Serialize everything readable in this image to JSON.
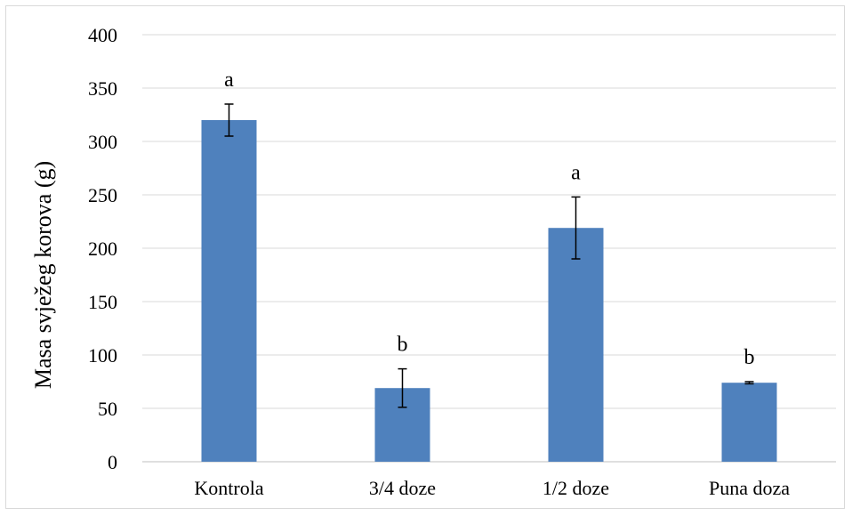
{
  "chart_data": {
    "type": "bar",
    "title": "",
    "xlabel": "",
    "ylabel": "Masa svježeg korova (g)",
    "categories": [
      "Kontrola",
      "3/4 doze",
      "1/2 doze",
      "Puna doza"
    ],
    "values": [
      320,
      69,
      219,
      74
    ],
    "error": [
      15,
      18,
      29,
      1
    ],
    "significance_labels": [
      "a",
      "b",
      "a",
      "b"
    ],
    "ylim": [
      0,
      400
    ],
    "yticks": [
      0,
      50,
      100,
      150,
      200,
      250,
      300,
      350,
      400
    ],
    "grid": true,
    "bar_color": "#4f81bd",
    "grid_color": "#d9d9d9",
    "axis_color": "#bfbfbf",
    "legend": "none"
  }
}
